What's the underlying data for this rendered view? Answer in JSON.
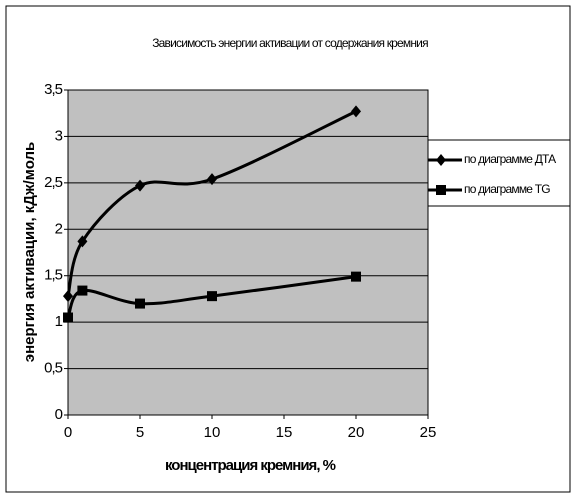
{
  "chart_data": {
    "type": "line",
    "title": "Зависимость энергии активации от содержания кремния",
    "x_label": "концентрация кремния, %",
    "y_label": "энергия активации, кДж/моль",
    "series": [
      {
        "name": "по диаграмме ДТА",
        "color": "#000000",
        "marker": "diamond",
        "x": [
          0,
          1,
          5,
          10,
          20
        ],
        "values": [
          1.28,
          1.87,
          2.47,
          2.54,
          3.27
        ]
      },
      {
        "name": "по диаграмме TG",
        "color": "#000000",
        "marker": "square",
        "x": [
          0,
          1,
          5,
          10,
          20
        ],
        "values": [
          1.05,
          1.34,
          1.2,
          1.28,
          1.49
        ]
      }
    ],
    "xlim": [
      0,
      25
    ],
    "xticks": [
      0,
      5,
      10,
      15,
      20,
      25
    ],
    "ylim": [
      0,
      3.5
    ],
    "yticks": [
      0,
      {
        "value": 0.5,
        "label": "0,5"
      },
      1,
      {
        "value": 1.5,
        "label": "1,5"
      },
      2,
      {
        "value": 2.5,
        "label": "2,5"
      },
      3,
      {
        "value": 3.5,
        "label": "3,5"
      }
    ],
    "grid": true,
    "smooth": true,
    "legend": "right",
    "plot_background": "#c0c0c0"
  }
}
